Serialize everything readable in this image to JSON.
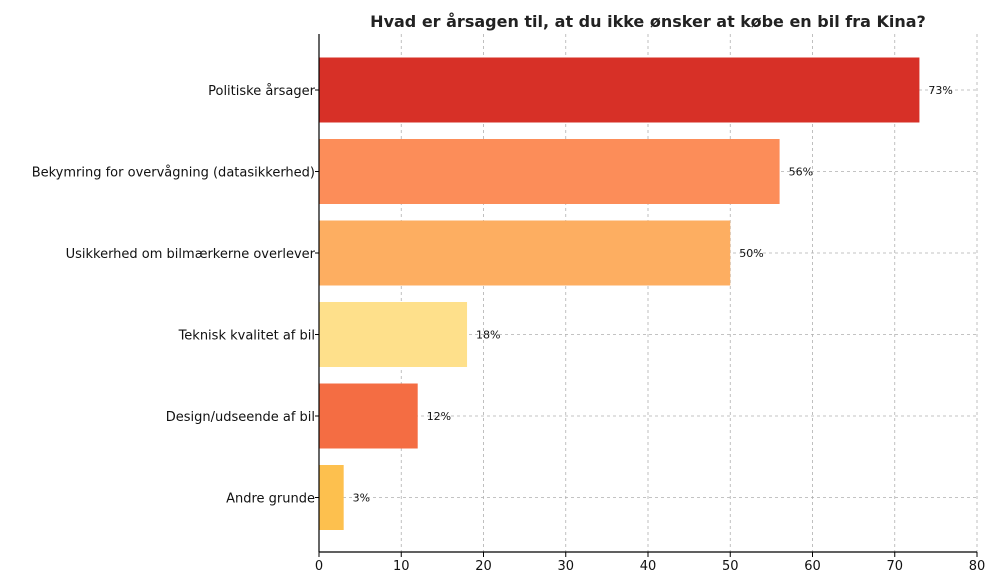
{
  "chart_data": {
    "type": "bar",
    "orientation": "horizontal",
    "title": "Hvad er årsagen til, at du ikke ønsker at købe en bil fra Kina?",
    "xlabel": "",
    "ylabel": "",
    "categories": [
      "Politiske årsager",
      "Bekymring for overvågning (datasikkerhed)",
      "Usikkerhed om bilmærkerne overlever",
      "Teknisk kvalitet af bil",
      "Design/udseende af bil",
      "Andre grunde"
    ],
    "values": [
      73,
      56,
      50,
      18,
      12,
      3
    ],
    "value_labels": [
      "73%",
      "56%",
      "50%",
      "18%",
      "12%",
      "3%"
    ],
    "colors": [
      "#d73027",
      "#fc8d59",
      "#fdae61",
      "#fee08b",
      "#f46d43",
      "#fdc04e"
    ],
    "xlim": [
      0,
      80
    ],
    "xticks": [
      0,
      10,
      20,
      30,
      40,
      50,
      60,
      70,
      80
    ],
    "grid": true
  }
}
